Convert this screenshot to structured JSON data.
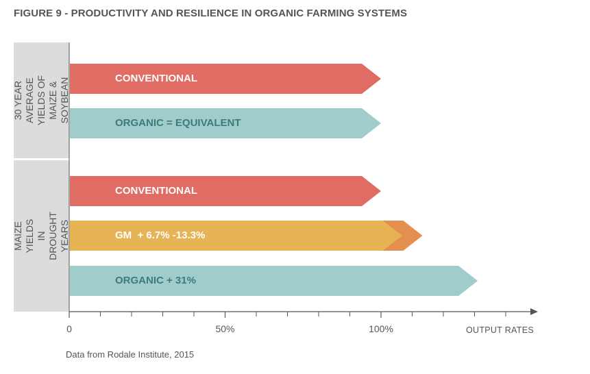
{
  "title": "FIGURE 9 - PRODUCTIVITY AND RESILIENCE IN ORGANIC FARMING SYSTEMS",
  "source": "Data from Rodale Institute, 2015",
  "chart_data": {
    "type": "bar",
    "orientation": "horizontal",
    "title": "FIGURE 9 - PRODUCTIVITY AND RESILIENCE IN ORGANIC FARMING SYSTEMS",
    "xlabel": "OUTPUT RATES",
    "xlim": [
      0,
      150
    ],
    "x_ticks": [
      {
        "value": 0,
        "label": "0"
      },
      {
        "value": 50,
        "label": "50%"
      },
      {
        "value": 100,
        "label": "100%"
      }
    ],
    "groups": [
      {
        "label": "30 YEAR AVERAGE\nYIELDS OF MAIZE &\nSOYBEAN",
        "bars": [
          {
            "label": "CONVENTIONAL",
            "value": 100,
            "color": "#e06c63",
            "label_color": "#ffffff"
          },
          {
            "label": "ORGANIC = EQUIVALENT",
            "value": 100,
            "color": "#a0cccc",
            "label_color": "#3d7a7c"
          }
        ]
      },
      {
        "label": "MAIZE YIELDS\nIN DROUGHT\nYEARS",
        "bars": [
          {
            "label": "CONVENTIONAL",
            "value": 100,
            "color": "#e06c63",
            "label_color": "#ffffff"
          },
          {
            "label": "GM  + 6.7% -13.3%",
            "value": 106.7,
            "value_high": 113.3,
            "color": "#e6b455",
            "range_color": "#e38f50",
            "label_color": "#ffffff"
          },
          {
            "label": "ORGANIC + 31%",
            "value": 131,
            "color": "#a0cccc",
            "label_color": "#3d7a7c"
          }
        ]
      }
    ],
    "grid": false,
    "legend": "none",
    "colors": {
      "axis": "#555555",
      "panel": "#dcdcdc"
    }
  }
}
